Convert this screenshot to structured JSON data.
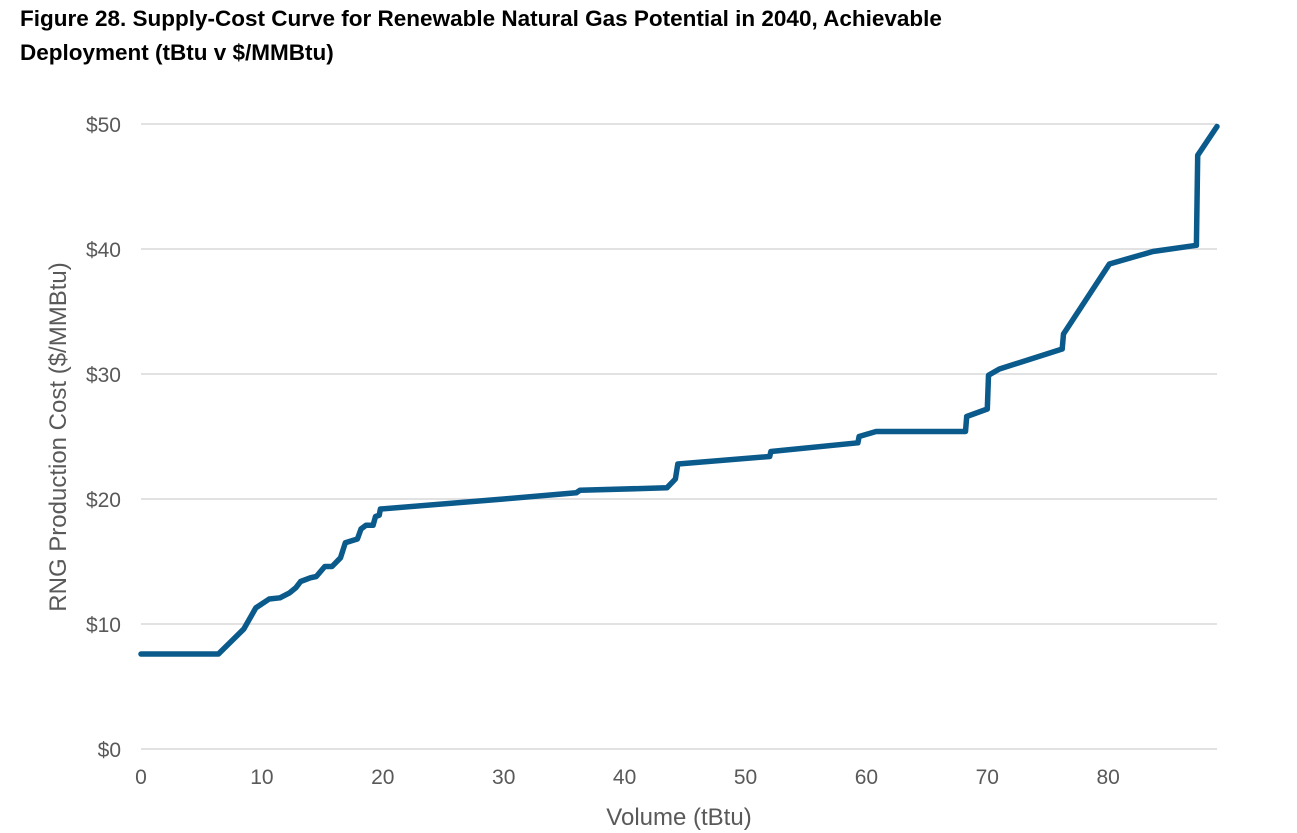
{
  "figure": {
    "title_line1": "Figure 28. Supply-Cost Curve for Renewable Natural Gas Potential in 2040, Achievable",
    "title_line2": "Deployment (tBtu v $/MMBtu)"
  },
  "chart_data": {
    "type": "line",
    "title": "Figure 28. Supply-Cost Curve for Renewable Natural Gas Potential in 2040, Achievable Deployment (tBtu v $/MMBtu)",
    "xlabel": "Volume (tBtu)",
    "ylabel": "RNG Production Cost ($/MMBtu)",
    "xlim": [
      0,
      89
    ],
    "ylim": [
      0,
      50
    ],
    "x_ticks": [
      0,
      10,
      20,
      30,
      40,
      50,
      60,
      70,
      80
    ],
    "y_ticks": [
      0,
      10,
      20,
      30,
      40,
      50
    ],
    "x_tick_labels": [
      "0",
      "10",
      "20",
      "30",
      "40",
      "50",
      "60",
      "70",
      "80"
    ],
    "y_tick_labels": [
      "$0",
      "$10",
      "$20",
      "$30",
      "$40",
      "$50"
    ],
    "grid": "horizontal",
    "line_color": "#0B5A8C",
    "grid_color": "#D9D9D9",
    "series": [
      {
        "points": [
          [
            0,
            7.6
          ],
          [
            6.4,
            7.6
          ],
          [
            8.5,
            9.6
          ],
          [
            9.5,
            11.3
          ],
          [
            10.6,
            12.0
          ],
          [
            11.5,
            12.1
          ],
          [
            12.3,
            12.5
          ],
          [
            12.8,
            12.9
          ],
          [
            13.2,
            13.4
          ],
          [
            14.0,
            13.7
          ],
          [
            14.5,
            13.8
          ],
          [
            15.2,
            14.6
          ],
          [
            15.8,
            14.6
          ],
          [
            16.5,
            15.3
          ],
          [
            16.9,
            16.5
          ],
          [
            17.9,
            16.8
          ],
          [
            18.2,
            17.6
          ],
          [
            18.6,
            17.9
          ],
          [
            19.2,
            17.9
          ],
          [
            19.4,
            18.6
          ],
          [
            19.7,
            18.7
          ],
          [
            19.8,
            19.2
          ],
          [
            30,
            20.0
          ],
          [
            36,
            20.5
          ],
          [
            36.3,
            20.7
          ],
          [
            43.5,
            20.9
          ],
          [
            44.2,
            21.6
          ],
          [
            44.4,
            22.8
          ],
          [
            52,
            23.4
          ],
          [
            52.1,
            23.8
          ],
          [
            59.3,
            24.5
          ],
          [
            59.4,
            25.0
          ],
          [
            60.8,
            25.4
          ],
          [
            62.5,
            25.4
          ],
          [
            68.2,
            25.4
          ],
          [
            68.3,
            26.6
          ],
          [
            70.0,
            27.2
          ],
          [
            70.1,
            29.9
          ],
          [
            71.0,
            30.4
          ],
          [
            76.2,
            32.0
          ],
          [
            76.3,
            33.2
          ],
          [
            80.1,
            38.8
          ],
          [
            83.7,
            39.8
          ],
          [
            87.3,
            40.3
          ],
          [
            87.4,
            47.5
          ],
          [
            89,
            49.8
          ]
        ]
      }
    ]
  }
}
